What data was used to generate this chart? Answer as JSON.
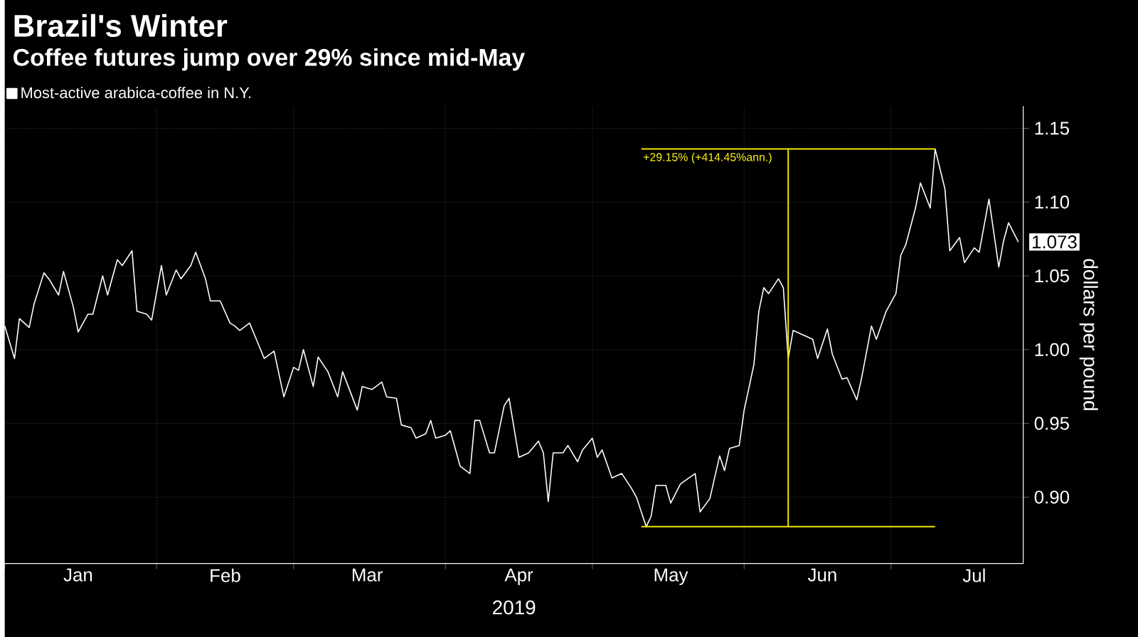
{
  "chart_data": {
    "type": "line",
    "title": "Brazil's Winter",
    "subtitle": "Coffee futures jump over 29% since mid-May",
    "xlabel": "2019",
    "ylabel": "dollars per pound",
    "xlim": [
      "2019-01-01",
      "2019-07-28"
    ],
    "ylim": [
      0.855,
      1.165
    ],
    "xticks": [
      {
        "value": "2019-01-01",
        "label": null
      },
      {
        "value": "2019-02-01",
        "label": null
      },
      {
        "value": "2019-03-01",
        "label": null
      },
      {
        "value": "2019-04-01",
        "label": null
      },
      {
        "value": "2019-05-01",
        "label": null
      },
      {
        "value": "2019-06-01",
        "label": null
      },
      {
        "value": "2019-07-01",
        "label": null
      },
      {
        "value": "2019-01-16",
        "label": "Jan"
      },
      {
        "value": "2019-02-15",
        "label": "Feb"
      },
      {
        "value": "2019-03-16",
        "label": "Mar"
      },
      {
        "value": "2019-04-16",
        "label": "Apr"
      },
      {
        "value": "2019-05-17",
        "label": "May"
      },
      {
        "value": "2019-06-17",
        "label": "Jun"
      },
      {
        "value": "2019-07-18",
        "label": "Jul"
      }
    ],
    "yticks": [
      {
        "value": 0.9,
        "label": "0.90"
      },
      {
        "value": 0.95,
        "label": "0.95"
      },
      {
        "value": 1.0,
        "label": "1.00"
      },
      {
        "value": 1.05,
        "label": "1.05"
      },
      {
        "value": 1.1,
        "label": "1.10"
      },
      {
        "value": 1.15,
        "label": "1.15"
      }
    ],
    "grid": true,
    "legend": "top left",
    "series": [
      {
        "name": "Most-active arabica-coffee in N.Y.",
        "color": "#ffffff",
        "x": [
          "2019-01-01",
          "2019-01-03",
          "2019-01-04",
          "2019-01-06",
          "2019-01-07",
          "2019-01-09",
          "2019-01-10",
          "2019-01-12",
          "2019-01-13",
          "2019-01-15",
          "2019-01-16",
          "2019-01-18",
          "2019-01-19",
          "2019-01-21",
          "2019-01-22",
          "2019-01-24",
          "2019-01-25",
          "2019-01-27",
          "2019-01-28",
          "2019-01-30",
          "2019-01-31",
          "2019-02-02",
          "2019-02-03",
          "2019-02-05",
          "2019-02-06",
          "2019-02-08",
          "2019-02-09",
          "2019-02-11",
          "2019-02-12",
          "2019-02-14",
          "2019-02-16",
          "2019-02-17",
          "2019-02-18",
          "2019-02-20",
          "2019-02-21",
          "2019-02-23",
          "2019-02-25",
          "2019-02-27",
          "2019-03-01",
          "2019-03-02",
          "2019-03-03",
          "2019-03-05",
          "2019-03-06",
          "2019-03-08",
          "2019-03-10",
          "2019-03-11",
          "2019-03-14",
          "2019-03-15",
          "2019-03-17",
          "2019-03-19",
          "2019-03-20",
          "2019-03-22",
          "2019-03-23",
          "2019-03-25",
          "2019-03-26",
          "2019-03-28",
          "2019-03-29",
          "2019-03-30",
          "2019-04-01",
          "2019-04-02",
          "2019-04-04",
          "2019-04-06",
          "2019-04-07",
          "2019-04-08",
          "2019-04-10",
          "2019-04-11",
          "2019-04-13",
          "2019-04-14",
          "2019-04-16",
          "2019-04-18",
          "2019-04-20",
          "2019-04-21",
          "2019-04-22",
          "2019-04-23",
          "2019-04-25",
          "2019-04-26",
          "2019-04-28",
          "2019-04-29",
          "2019-05-01",
          "2019-05-02",
          "2019-05-03",
          "2019-05-05",
          "2019-05-07",
          "2019-05-09",
          "2019-05-10",
          "2019-05-12",
          "2019-05-13",
          "2019-05-14",
          "2019-05-16",
          "2019-05-17",
          "2019-05-19",
          "2019-05-22",
          "2019-05-23",
          "2019-05-25",
          "2019-05-27",
          "2019-05-28",
          "2019-05-29",
          "2019-05-31",
          "2019-06-01",
          "2019-06-03",
          "2019-06-04",
          "2019-06-05",
          "2019-06-06",
          "2019-06-08",
          "2019-06-09",
          "2019-06-10",
          "2019-06-11",
          "2019-06-13",
          "2019-06-15",
          "2019-06-16",
          "2019-06-18",
          "2019-06-19",
          "2019-06-21",
          "2019-06-22",
          "2019-06-24",
          "2019-06-25",
          "2019-06-27",
          "2019-06-28",
          "2019-06-30",
          "2019-07-02",
          "2019-07-03",
          "2019-07-04",
          "2019-07-06",
          "2019-07-07",
          "2019-07-09",
          "2019-07-10",
          "2019-07-12",
          "2019-07-13",
          "2019-07-15",
          "2019-07-16",
          "2019-07-18",
          "2019-07-19",
          "2019-07-21",
          "2019-07-23",
          "2019-07-24",
          "2019-07-25",
          "2019-07-27"
        ],
        "values": [
          1.016,
          0.994,
          1.021,
          1.015,
          1.031,
          1.052,
          1.048,
          1.037,
          1.053,
          1.029,
          1.012,
          1.024,
          1.024,
          1.05,
          1.037,
          1.061,
          1.057,
          1.067,
          1.026,
          1.024,
          1.02,
          1.057,
          1.037,
          1.054,
          1.048,
          1.057,
          1.066,
          1.048,
          1.033,
          1.033,
          1.018,
          1.016,
          1.013,
          1.018,
          1.01,
          0.994,
          0.999,
          0.968,
          0.988,
          0.986,
          1.0,
          0.975,
          0.995,
          0.985,
          0.968,
          0.985,
          0.959,
          0.975,
          0.973,
          0.978,
          0.968,
          0.967,
          0.949,
          0.947,
          0.94,
          0.943,
          0.952,
          0.94,
          0.942,
          0.945,
          0.921,
          0.916,
          0.952,
          0.952,
          0.93,
          0.93,
          0.962,
          0.967,
          0.927,
          0.93,
          0.938,
          0.93,
          0.897,
          0.93,
          0.93,
          0.935,
          0.924,
          0.932,
          0.94,
          0.927,
          0.932,
          0.913,
          0.916,
          0.906,
          0.9,
          0.88,
          0.887,
          0.908,
          0.908,
          0.896,
          0.909,
          0.916,
          0.89,
          0.899,
          0.928,
          0.918,
          0.933,
          0.935,
          0.959,
          0.99,
          1.026,
          1.042,
          1.038,
          1.048,
          1.042,
          0.994,
          1.013,
          1.01,
          1.007,
          0.994,
          1.014,
          0.997,
          0.98,
          0.981,
          0.966,
          0.981,
          1.016,
          1.007,
          1.026,
          1.038,
          1.064,
          1.071,
          1.096,
          1.113,
          1.096,
          1.136,
          1.109,
          1.067,
          1.076,
          1.059,
          1.069,
          1.066,
          1.102,
          1.056,
          1.074,
          1.086,
          1.073
        ]
      },
      {
        "type": "line",
        "color": "#f2e600",
        "x": [
          "2019-05-11",
          "2019-07-10"
        ],
        "values": [
          0.88,
          0.88
        ]
      },
      {
        "type": "line",
        "color": "#f2e600",
        "x": [
          "2019-05-11",
          "2019-07-10"
        ],
        "values": [
          1.136,
          1.136
        ]
      },
      {
        "type": "line",
        "color": "#f2e600",
        "x": [
          "2019-06-10",
          "2019-06-10"
        ],
        "values": [
          0.88,
          1.136
        ]
      }
    ],
    "annotations": [
      {
        "text": "+29.15% (+414.45%ann.)",
        "x": "2019-05-11",
        "y": 1.136
      },
      "1.073"
    ]
  }
}
